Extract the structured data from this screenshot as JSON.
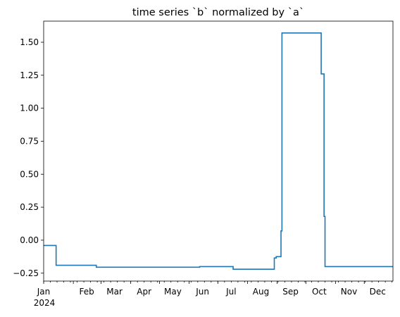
{
  "chart_data": {
    "type": "line",
    "title": "time series `b` normalized by `a`",
    "xlabel": "",
    "ylabel": "",
    "x_range": [
      "2024-01-01",
      "2024-12-31"
    ],
    "ylim": [
      -0.31,
      1.66
    ],
    "grid": false,
    "y_ticks": [
      {
        "value": -0.25,
        "label": "−0.25"
      },
      {
        "value": 0.0,
        "label": "0.00"
      },
      {
        "value": 0.25,
        "label": "0.25"
      },
      {
        "value": 0.5,
        "label": "0.50"
      },
      {
        "value": 0.75,
        "label": "0.75"
      },
      {
        "value": 1.0,
        "label": "1.00"
      },
      {
        "value": 1.25,
        "label": "1.25"
      },
      {
        "value": 1.5,
        "label": "1.50"
      }
    ],
    "x_ticks": [
      {
        "date": "2024-01-01",
        "label": "Jan",
        "sublabel": "2024"
      },
      {
        "date": "2024-02-01",
        "label": "Feb"
      },
      {
        "date": "2024-03-01",
        "label": "Mar"
      },
      {
        "date": "2024-04-01",
        "label": "Apr"
      },
      {
        "date": "2024-05-01",
        "label": "May"
      },
      {
        "date": "2024-06-01",
        "label": "Jun"
      },
      {
        "date": "2024-07-01",
        "label": "Jul"
      },
      {
        "date": "2024-08-01",
        "label": "Aug"
      },
      {
        "date": "2024-09-01",
        "label": "Sep"
      },
      {
        "date": "2024-10-01",
        "label": "Oct"
      },
      {
        "date": "2024-11-01",
        "label": "Nov"
      },
      {
        "date": "2024-12-01",
        "label": "Dec"
      }
    ],
    "series": [
      {
        "color": "#1f77b4",
        "step": "post",
        "points": [
          {
            "x": "2024-01-01",
            "y": -0.04
          },
          {
            "x": "2024-01-14",
            "y": -0.19
          },
          {
            "x": "2024-02-25",
            "y": -0.205
          },
          {
            "x": "2024-06-12",
            "y": -0.2
          },
          {
            "x": "2024-07-17",
            "y": -0.22
          },
          {
            "x": "2024-08-29",
            "y": -0.135
          },
          {
            "x": "2024-08-31",
            "y": -0.125
          },
          {
            "x": "2024-09-05",
            "y": 0.07
          },
          {
            "x": "2024-09-06",
            "y": 1.57
          },
          {
            "x": "2024-10-17",
            "y": 1.26
          },
          {
            "x": "2024-10-20",
            "y": 0.18
          },
          {
            "x": "2024-10-21",
            "y": -0.2
          },
          {
            "x": "2024-12-31",
            "y": -0.2
          }
        ]
      }
    ]
  }
}
